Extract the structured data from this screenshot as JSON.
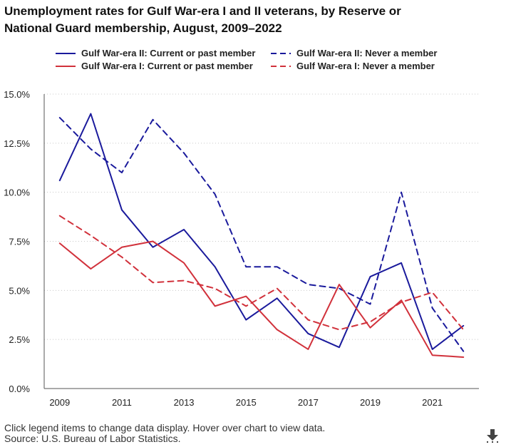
{
  "title_line1": "Unemployment rates for Gulf War-era I and II veterans, by Reserve or",
  "title_line2": "National Guard membership, August, 2009–2022",
  "legend": [
    {
      "label": "Gulf War-era II: Current or past member",
      "color": "#1a1a9c",
      "dashed": false
    },
    {
      "label": "Gulf War-era II: Never a member",
      "color": "#1a1a9c",
      "dashed": true
    },
    {
      "label": "Gulf War-era I: Current or past member",
      "color": "#d1313b",
      "dashed": false
    },
    {
      "label": "Gulf War-era I: Never a member",
      "color": "#d1313b",
      "dashed": true
    }
  ],
  "chart_data": {
    "type": "line",
    "title": "Unemployment rates for Gulf War-era I and II veterans, by Reserve or National Guard membership, August, 2009–2022",
    "xlabel": "",
    "ylabel": "",
    "x": [
      2009,
      2010,
      2011,
      2012,
      2013,
      2014,
      2015,
      2016,
      2017,
      2018,
      2019,
      2020,
      2021,
      2022
    ],
    "xticks": [
      "2009",
      "2011",
      "2013",
      "2015",
      "2017",
      "2019",
      "2021"
    ],
    "xtick_values": [
      2009,
      2011,
      2013,
      2015,
      2017,
      2019,
      2021
    ],
    "yticks": [
      "0.0%",
      "2.5%",
      "5.0%",
      "7.5%",
      "10.0%",
      "12.5%",
      "15.0%"
    ],
    "ytick_values": [
      0,
      2.5,
      5.0,
      7.5,
      10.0,
      12.5,
      15.0
    ],
    "ylim": [
      0,
      15
    ],
    "grid": "horizontal-dotted",
    "series": [
      {
        "name": "Gulf War-era II: Current or past member",
        "color": "#1a1a9c",
        "dashed": false,
        "values": [
          10.6,
          14.0,
          9.1,
          7.2,
          8.1,
          6.2,
          3.5,
          4.6,
          2.8,
          2.1,
          5.7,
          6.4,
          2.0,
          3.2
        ]
      },
      {
        "name": "Gulf War-era II: Never a member",
        "color": "#1a1a9c",
        "dashed": true,
        "values": [
          13.8,
          12.2,
          11.0,
          13.7,
          12.0,
          9.9,
          6.2,
          6.2,
          5.3,
          5.1,
          4.3,
          10.0,
          4.1,
          1.9
        ]
      },
      {
        "name": "Gulf War-era I: Current or past member",
        "color": "#d1313b",
        "dashed": false,
        "values": [
          7.4,
          6.1,
          7.2,
          7.5,
          6.4,
          4.2,
          4.7,
          3.0,
          2.0,
          5.3,
          3.1,
          4.5,
          1.7,
          1.6
        ]
      },
      {
        "name": "Gulf War-era I: Never a member",
        "color": "#d1313b",
        "dashed": true,
        "values": [
          8.8,
          7.8,
          6.7,
          5.4,
          5.5,
          5.1,
          4.2,
          5.1,
          3.5,
          3.0,
          3.4,
          4.4,
          4.9,
          3.0
        ]
      }
    ]
  },
  "footer": {
    "line1": "Click legend items to change data display. Hover over chart to view data.",
    "line2": "Source: U.S. Bureau of Labor Statistics."
  },
  "download_icon": "download-icon"
}
